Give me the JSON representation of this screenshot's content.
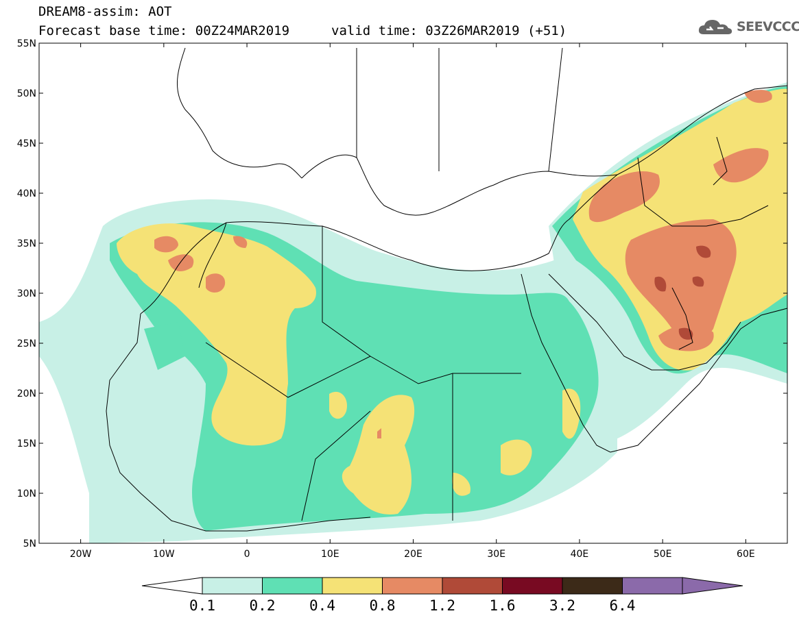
{
  "header": {
    "line1": "DREAM8-assim: AOT",
    "line2_base": "Forecast base time: 00Z24MAR2019",
    "line2_valid": "valid time: 03Z26MAR2019 (+51)"
  },
  "logo": {
    "text": "SEEVCCC",
    "icon": "cloud-icon"
  },
  "map": {
    "lon_range": [
      -25,
      65
    ],
    "lat_range": [
      5,
      55
    ],
    "lat_ticks": [
      {
        "value": 55,
        "label": "55N"
      },
      {
        "value": 50,
        "label": "50N"
      },
      {
        "value": 45,
        "label": "45N"
      },
      {
        "value": 40,
        "label": "40N"
      },
      {
        "value": 35,
        "label": "35N"
      },
      {
        "value": 30,
        "label": "30N"
      },
      {
        "value": 25,
        "label": "25N"
      },
      {
        "value": 20,
        "label": "20N"
      },
      {
        "value": 15,
        "label": "15N"
      },
      {
        "value": 10,
        "label": "10N"
      },
      {
        "value": 5,
        "label": "5N"
      }
    ],
    "lon_ticks": [
      {
        "value": -20,
        "label": "20W"
      },
      {
        "value": -10,
        "label": "10W"
      },
      {
        "value": 0,
        "label": "0"
      },
      {
        "value": 10,
        "label": "10E"
      },
      {
        "value": 20,
        "label": "20E"
      },
      {
        "value": 30,
        "label": "30E"
      },
      {
        "value": 40,
        "label": "40E"
      },
      {
        "value": 50,
        "label": "50E"
      },
      {
        "value": 60,
        "label": "60E"
      }
    ]
  },
  "colorbar": {
    "labels": [
      "0.1",
      "0.2",
      "0.4",
      "0.8",
      "1.2",
      "1.6",
      "3.2",
      "6.4"
    ],
    "colors": [
      "#ffffff",
      "#c8f0e6",
      "#5fe0b4",
      "#f5e276",
      "#e68a64",
      "#b04a38",
      "#780a22",
      "#3c2a18",
      "#8b6aaa"
    ]
  }
}
